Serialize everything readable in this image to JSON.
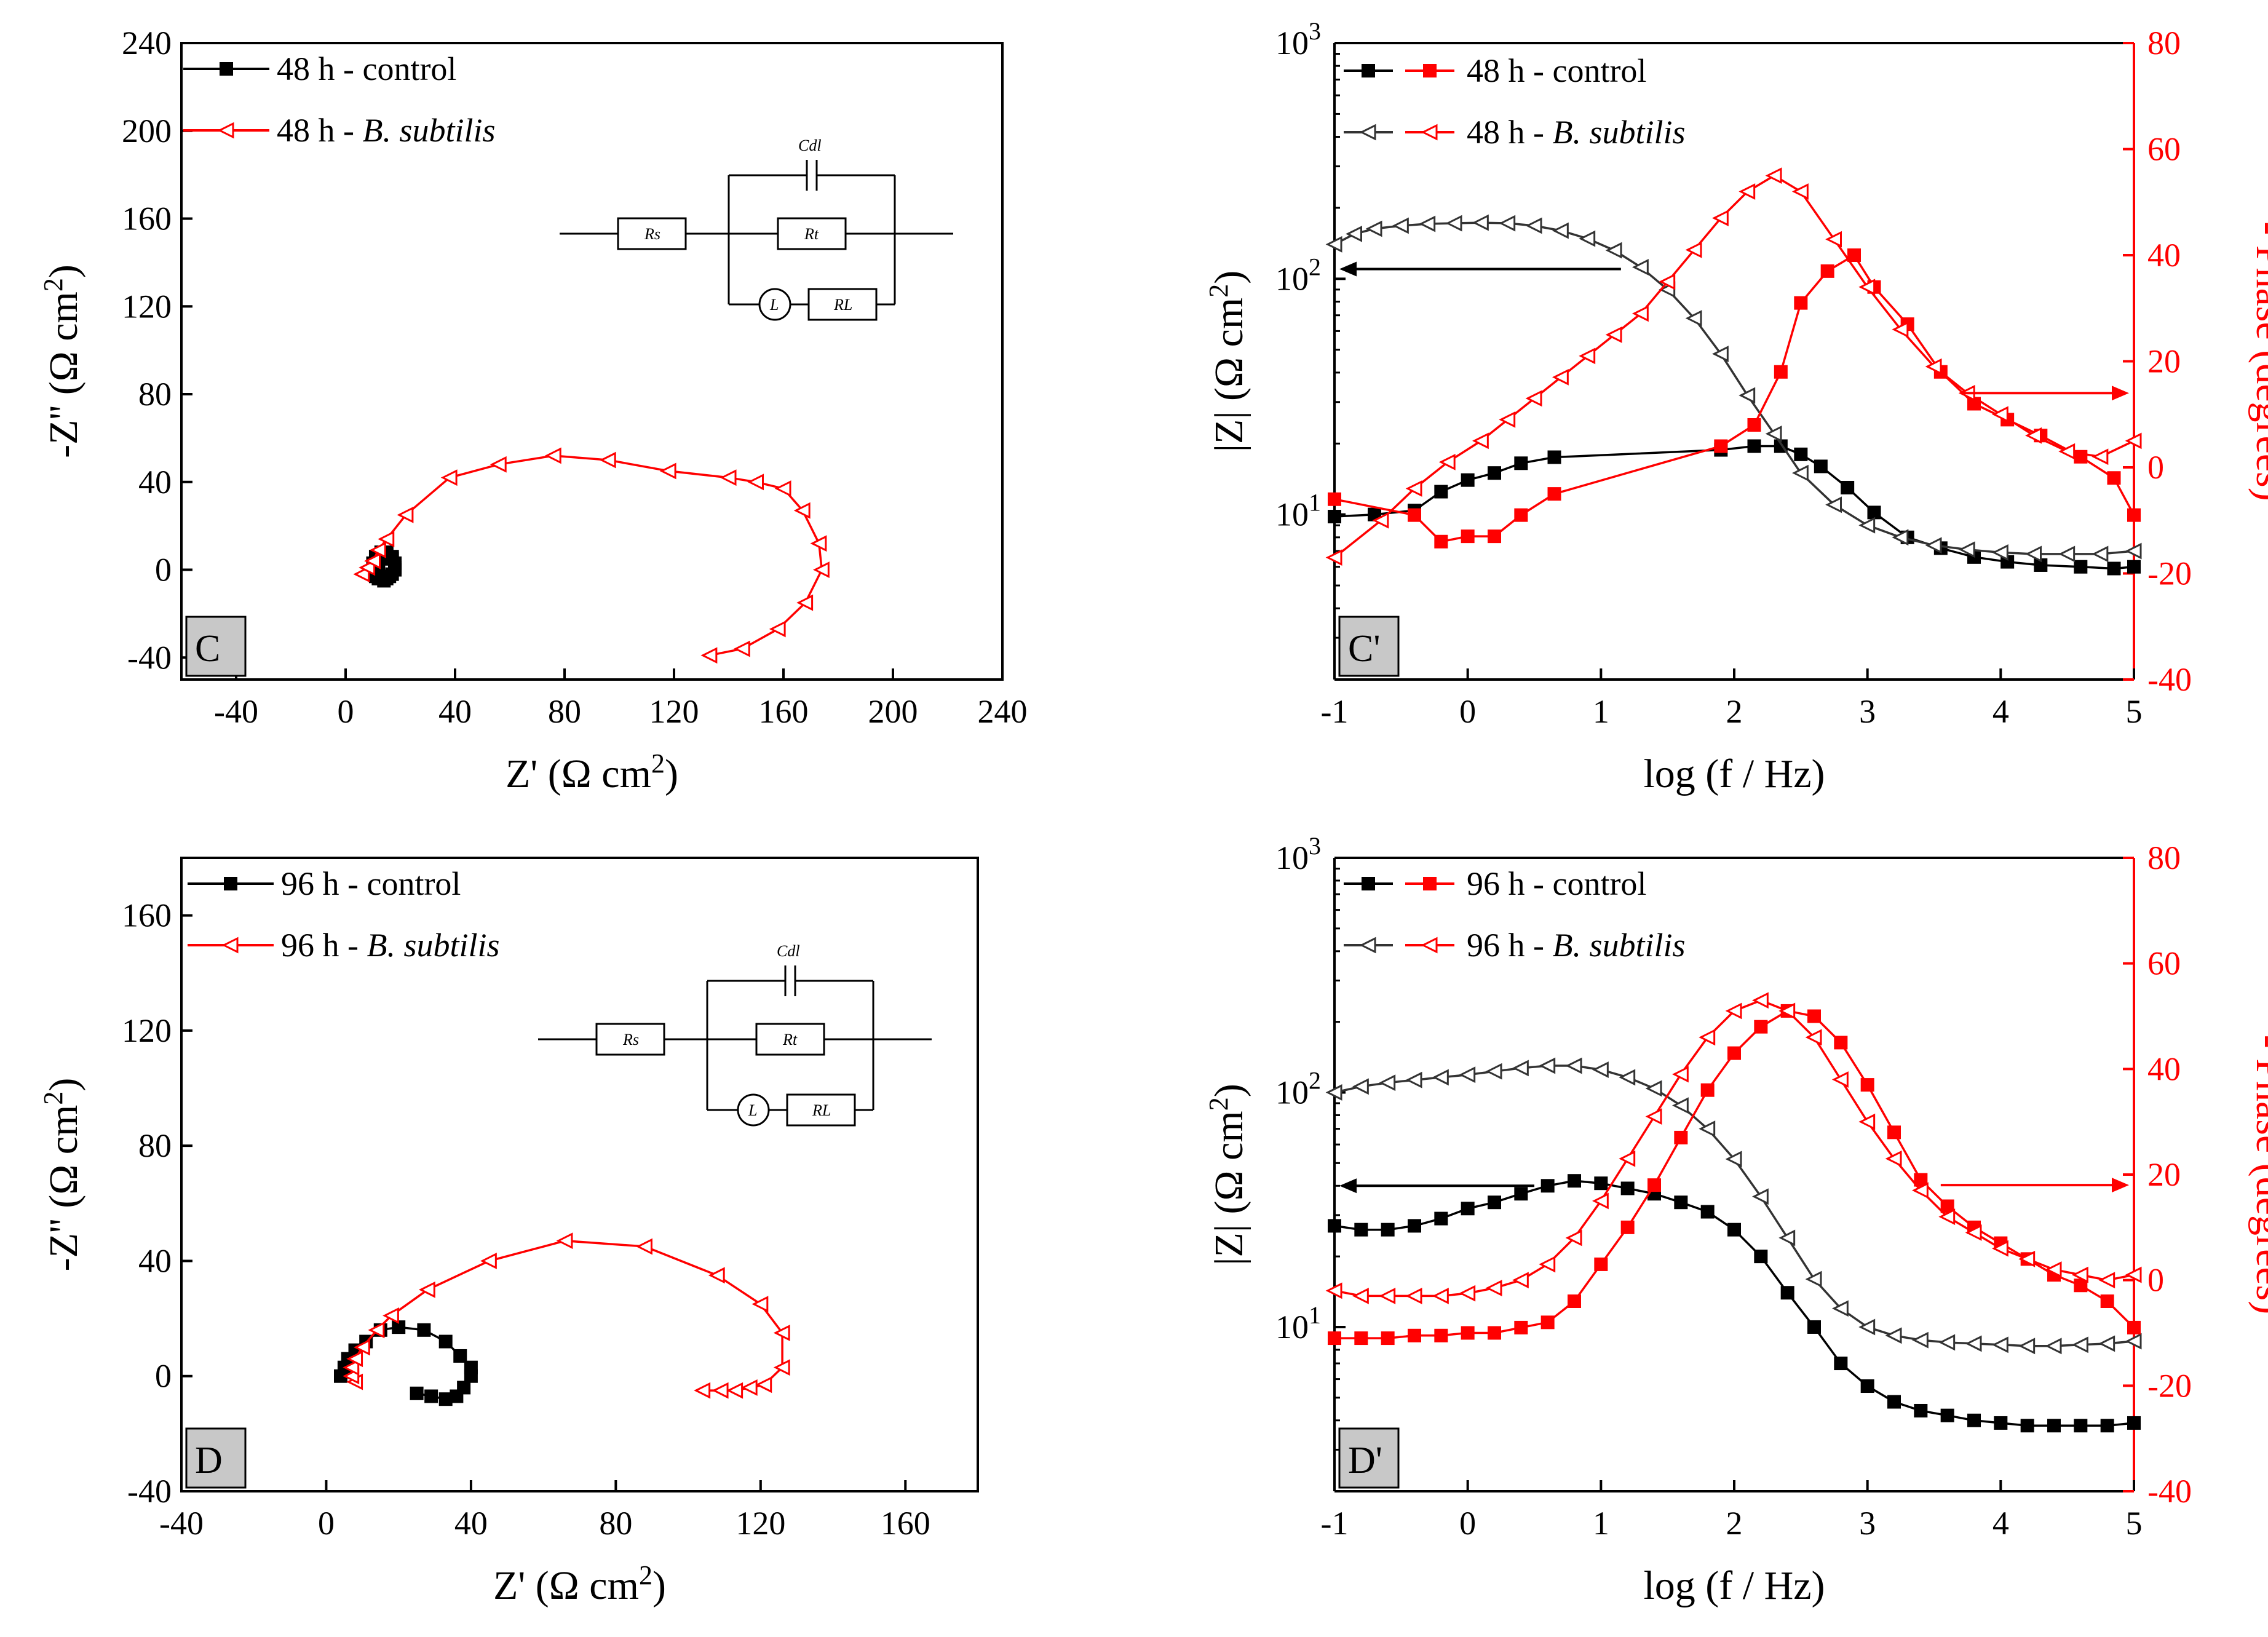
{
  "colors": {
    "control": "#000000",
    "bsub": "#ff0000",
    "phase_axis": "#ff0000",
    "gray_series": "#333333"
  },
  "circuit": {
    "rs": "Rs",
    "rt": "Rt",
    "rl": "RL",
    "l": "L",
    "cdl": "Cdl"
  },
  "chart_data": [
    {
      "id": "C",
      "type": "scatter",
      "title": "",
      "panel_label": "C",
      "xlabel_main": "Z' (Ω cm",
      "xlabel_sup": "2",
      "xlabel_end": ")",
      "ylabel_main": "-Z'' (Ω cm",
      "ylabel_sup": "2",
      "ylabel_end": ")",
      "xlim": [
        -60,
        240
      ],
      "ylim": [
        -50,
        240
      ],
      "xticks": [
        -40,
        0,
        40,
        80,
        120,
        160,
        200,
        240
      ],
      "yticks": [
        -40,
        0,
        40,
        80,
        120,
        160,
        200,
        240
      ],
      "legend": [
        {
          "text": "48 h - control",
          "italic": ""
        },
        {
          "text": "48 h - ",
          "italic": "B. subtilis"
        }
      ],
      "series": [
        {
          "name": "48 h - control",
          "marker": "square",
          "x": [
            12,
            13,
            15,
            17,
            18,
            18,
            17,
            15,
            13,
            11,
            10,
            10,
            11,
            13,
            15,
            17,
            18,
            16,
            14,
            12
          ],
          "y": [
            0,
            5,
            7,
            6,
            3,
            0,
            -2,
            -4,
            -4,
            -3,
            0,
            3,
            6,
            8,
            8,
            5,
            1,
            -3,
            -5,
            -4
          ]
        },
        {
          "name": "48 h - B. subtilis",
          "marker": "triangle-left",
          "x": [
            6,
            8,
            10,
            12,
            15,
            22,
            38,
            56,
            76,
            96,
            118,
            140,
            150,
            160,
            167,
            173,
            174,
            168,
            158,
            145,
            133
          ],
          "y": [
            -2,
            1,
            4,
            9,
            14,
            25,
            42,
            48,
            52,
            50,
            45,
            42,
            40,
            37,
            27,
            12,
            0,
            -15,
            -27,
            -36,
            -39
          ]
        }
      ]
    },
    {
      "id": "Cp",
      "type": "line",
      "title": "",
      "panel_label": "C'",
      "xlabel": "log (f / Hz)",
      "ylabel_main": "|Z| (Ω cm",
      "ylabel_sup": "2",
      "ylabel_end": ")",
      "y2label": "- Phase (degrees)",
      "xlim": [
        -1,
        5
      ],
      "ylog_range": [
        0.3,
        3
      ],
      "y2lim": [
        -40,
        80
      ],
      "xticks": [
        -1,
        0,
        1,
        2,
        3,
        4,
        5
      ],
      "yticks_exp": [
        1,
        2,
        3
      ],
      "y2ticks": [
        -40,
        -20,
        0,
        20,
        40,
        60,
        80
      ],
      "legend": [
        {
          "text": "48 h - control",
          "italic": ""
        },
        {
          "text": "48 h - ",
          "italic": "B. subtilis"
        }
      ],
      "series": [
        {
          "name": "48 h - control |Z|",
          "axis": "left",
          "marker": "square",
          "x": [
            -1,
            -0.7,
            -0.4,
            -0.2,
            0,
            0.2,
            0.4,
            0.65,
            1.9,
            2.15,
            2.35,
            2.5,
            2.65,
            2.85,
            3.05,
            3.3,
            3.55,
            3.8,
            4.05,
            4.3,
            4.6,
            4.85,
            5
          ],
          "y": [
            9.8,
            10.0,
            10.4,
            12.5,
            14.0,
            15.0,
            16.5,
            17.5,
            18.8,
            19.5,
            19.5,
            18.0,
            16.0,
            13.0,
            10.2,
            8.0,
            7.2,
            6.6,
            6.3,
            6.1,
            6.0,
            5.9,
            6.0
          ]
        },
        {
          "name": "48 h - B. subtilis |Z|",
          "axis": "left",
          "marker": "triangle-left",
          "x": [
            -1,
            -0.85,
            -0.7,
            -0.5,
            -0.3,
            -0.1,
            0.1,
            0.3,
            0.5,
            0.7,
            0.9,
            1.1,
            1.3,
            1.5,
            1.7,
            1.9,
            2.1,
            2.3,
            2.5,
            2.75,
            3.0,
            3.25,
            3.5,
            3.75,
            4.0,
            4.25,
            4.5,
            4.75,
            5
          ],
          "y": [
            140,
            155,
            163,
            168,
            171,
            172,
            173,
            172,
            168,
            160,
            148,
            132,
            112,
            90,
            68,
            48,
            32,
            22,
            15,
            11,
            9.0,
            8.0,
            7.4,
            7.1,
            6.9,
            6.8,
            6.8,
            6.8,
            7.0
          ]
        },
        {
          "name": "48 h - control phase",
          "axis": "right",
          "marker": "square",
          "x": [
            -1,
            -0.4,
            -0.2,
            0,
            0.2,
            0.4,
            0.65,
            1.9,
            2.15,
            2.35,
            2.5,
            2.7,
            2.9,
            3.05,
            3.3,
            3.55,
            3.8,
            4.05,
            4.3,
            4.6,
            4.85,
            5
          ],
          "y": [
            -6,
            -9,
            -14,
            -13,
            -13,
            -9,
            -5,
            4,
            8,
            18,
            31,
            37,
            40,
            34,
            27,
            18,
            12,
            9,
            6,
            2,
            -2,
            -9
          ]
        },
        {
          "name": "48 h - B. subtilis phase",
          "axis": "right",
          "marker": "triangle-left",
          "x": [
            -1,
            -0.65,
            -0.4,
            -0.15,
            0.1,
            0.3,
            0.5,
            0.7,
            0.9,
            1.1,
            1.3,
            1.5,
            1.7,
            1.9,
            2.1,
            2.3,
            2.5,
            2.75,
            3.0,
            3.25,
            3.5,
            3.75,
            4.0,
            4.25,
            4.5,
            4.75,
            5
          ],
          "y": [
            -17,
            -10,
            -4,
            1,
            5,
            9,
            13,
            17,
            21,
            25,
            29,
            35,
            41,
            47,
            52,
            55,
            52,
            43,
            34,
            26,
            19,
            14,
            10,
            6,
            3,
            2,
            5
          ]
        }
      ]
    },
    {
      "id": "D",
      "type": "scatter",
      "title": "",
      "panel_label": "D",
      "xlabel_main": "Z' (Ω cm",
      "xlabel_sup": "2",
      "xlabel_end": ")",
      "ylabel_main": "-Z'' (Ω cm",
      "ylabel_sup": "2",
      "ylabel_end": ")",
      "xlim": [
        -40,
        180
      ],
      "ylim": [
        -40,
        180
      ],
      "xticks": [
        -40,
        0,
        40,
        80,
        120,
        160
      ],
      "yticks": [
        -40,
        0,
        40,
        80,
        120,
        160
      ],
      "legend": [
        {
          "text": "96 h - control",
          "italic": ""
        },
        {
          "text": "96 h - ",
          "italic": "B. subtilis"
        }
      ],
      "series": [
        {
          "name": "96 h - control",
          "marker": "square",
          "x": [
            4,
            5,
            6,
            8,
            11,
            15,
            20,
            27,
            33,
            37,
            40,
            40,
            38,
            36,
            33,
            29,
            25
          ],
          "y": [
            0,
            3,
            6,
            9,
            12,
            16,
            17,
            16,
            12,
            7,
            3,
            0,
            -4,
            -7,
            -8,
            -7,
            -6
          ]
        },
        {
          "name": "96 h - B. subtilis",
          "marker": "triangle-left",
          "x": [
            8,
            7,
            7,
            8,
            10,
            14,
            18,
            28,
            45,
            66,
            88,
            108,
            120,
            126,
            126,
            121,
            117,
            113,
            109,
            104
          ],
          "y": [
            -2,
            0,
            3,
            6,
            10,
            16,
            21,
            30,
            40,
            47,
            45,
            35,
            25,
            15,
            3,
            -3,
            -4,
            -5,
            -5,
            -5
          ]
        }
      ]
    },
    {
      "id": "Dp",
      "type": "line",
      "title": "",
      "panel_label": "D'",
      "xlabel": "log (f / Hz)",
      "ylabel_main": "|Z| (Ω cm",
      "ylabel_sup": "2",
      "ylabel_end": ")",
      "y2label": "- Phase (degrees)",
      "xlim": [
        -1,
        5
      ],
      "ylog_range": [
        0.3,
        3
      ],
      "y2lim": [
        -40,
        80
      ],
      "xticks": [
        -1,
        0,
        1,
        2,
        3,
        4,
        5
      ],
      "yticks_exp": [
        1,
        2,
        3
      ],
      "y2ticks": [
        -40,
        -20,
        0,
        20,
        40,
        60,
        80
      ],
      "legend": [
        {
          "text": "96 h - control",
          "italic": ""
        },
        {
          "text": "96 h - ",
          "italic": "B. subtilis"
        }
      ],
      "series": [
        {
          "name": "96 h - control |Z|",
          "axis": "left",
          "marker": "square",
          "x": [
            -1,
            -0.8,
            -0.6,
            -0.4,
            -0.2,
            0,
            0.2,
            0.4,
            0.6,
            0.8,
            1.0,
            1.2,
            1.4,
            1.6,
            1.8,
            2.0,
            2.2,
            2.4,
            2.6,
            2.8,
            3.0,
            3.2,
            3.4,
            3.6,
            3.8,
            4.0,
            4.2,
            4.4,
            4.6,
            4.8,
            5
          ],
          "y": [
            27,
            26,
            26,
            27,
            29,
            32,
            34,
            37,
            40,
            42,
            41,
            39,
            37,
            34,
            31,
            26,
            20,
            14,
            10,
            7,
            5.6,
            4.8,
            4.4,
            4.2,
            4.0,
            3.9,
            3.8,
            3.8,
            3.8,
            3.8,
            3.9
          ]
        },
        {
          "name": "96 h - B. subtilis |Z|",
          "axis": "left",
          "marker": "triangle-left",
          "x": [
            -1,
            -0.8,
            -0.6,
            -0.4,
            -0.2,
            0,
            0.2,
            0.4,
            0.6,
            0.8,
            1.0,
            1.2,
            1.4,
            1.6,
            1.8,
            2.0,
            2.2,
            2.4,
            2.6,
            2.8,
            3.0,
            3.2,
            3.4,
            3.6,
            3.8,
            4.0,
            4.2,
            4.4,
            4.6,
            4.8,
            5
          ],
          "y": [
            100,
            106,
            110,
            113,
            116,
            119,
            123,
            127,
            130,
            130,
            125,
            116,
            104,
            88,
            70,
            52,
            36,
            24,
            16,
            12,
            10,
            9.2,
            8.8,
            8.6,
            8.5,
            8.4,
            8.3,
            8.3,
            8.4,
            8.5,
            8.7
          ]
        },
        {
          "name": "96 h - control phase",
          "axis": "right",
          "marker": "square",
          "x": [
            -1,
            -0.8,
            -0.6,
            -0.4,
            -0.2,
            0,
            0.2,
            0.4,
            0.6,
            0.8,
            1.0,
            1.2,
            1.4,
            1.6,
            1.8,
            2.0,
            2.2,
            2.4,
            2.6,
            2.8,
            3.0,
            3.2,
            3.4,
            3.6,
            3.8,
            4.0,
            4.2,
            4.4,
            4.6,
            4.8,
            5
          ],
          "y": [
            -11,
            -11,
            -11,
            -10.5,
            -10.5,
            -10,
            -10,
            -9,
            -8,
            -4,
            3,
            10,
            18,
            27,
            36,
            43,
            48,
            51,
            50,
            45,
            37,
            28,
            19,
            14,
            10,
            7,
            4,
            1,
            -1,
            -4,
            -9
          ]
        },
        {
          "name": "96 h - B. subtilis phase",
          "axis": "right",
          "marker": "triangle-left",
          "x": [
            -1,
            -0.8,
            -0.6,
            -0.4,
            -0.2,
            0,
            0.2,
            0.4,
            0.6,
            0.8,
            1.0,
            1.2,
            1.4,
            1.6,
            1.8,
            2.0,
            2.2,
            2.4,
            2.6,
            2.8,
            3.0,
            3.2,
            3.4,
            3.6,
            3.8,
            4.0,
            4.2,
            4.4,
            4.6,
            4.8,
            5
          ],
          "y": [
            -2,
            -3,
            -3,
            -3,
            -3,
            -2.5,
            -1.5,
            0,
            3,
            8,
            15,
            23,
            31,
            39,
            46,
            51,
            53,
            51,
            46,
            38,
            30,
            23,
            17,
            12,
            9,
            6,
            4,
            2,
            1,
            0,
            1
          ]
        }
      ]
    }
  ]
}
